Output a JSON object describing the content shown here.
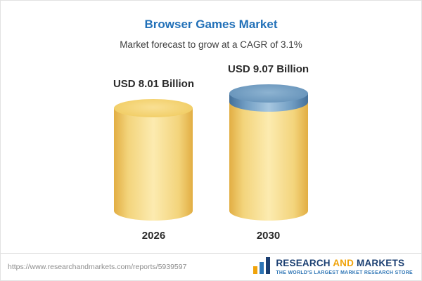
{
  "chart_data": {
    "type": "bar",
    "title": "Browser Games Market",
    "subtitle": "Market forecast to grow at a CAGR of 3.1%",
    "categories": [
      "2026",
      "2030"
    ],
    "values": [
      8.01,
      9.07
    ],
    "value_labels": [
      "USD 8.01 Billion",
      "USD 9.07 Billion"
    ],
    "unit": "USD Billion",
    "legend": false,
    "colors": {
      "base_bar": "#F2CF69",
      "growth_cap": "#6B97BD",
      "title": "#2170B8"
    }
  },
  "footer": {
    "url": "https://www.researchandmarkets.com/reports/5939597",
    "logo": {
      "word1": "RESEARCH",
      "word2": "AND",
      "word3": "MARKETS",
      "tagline": "THE WORLD'S LARGEST MARKET RESEARCH STORE"
    }
  }
}
